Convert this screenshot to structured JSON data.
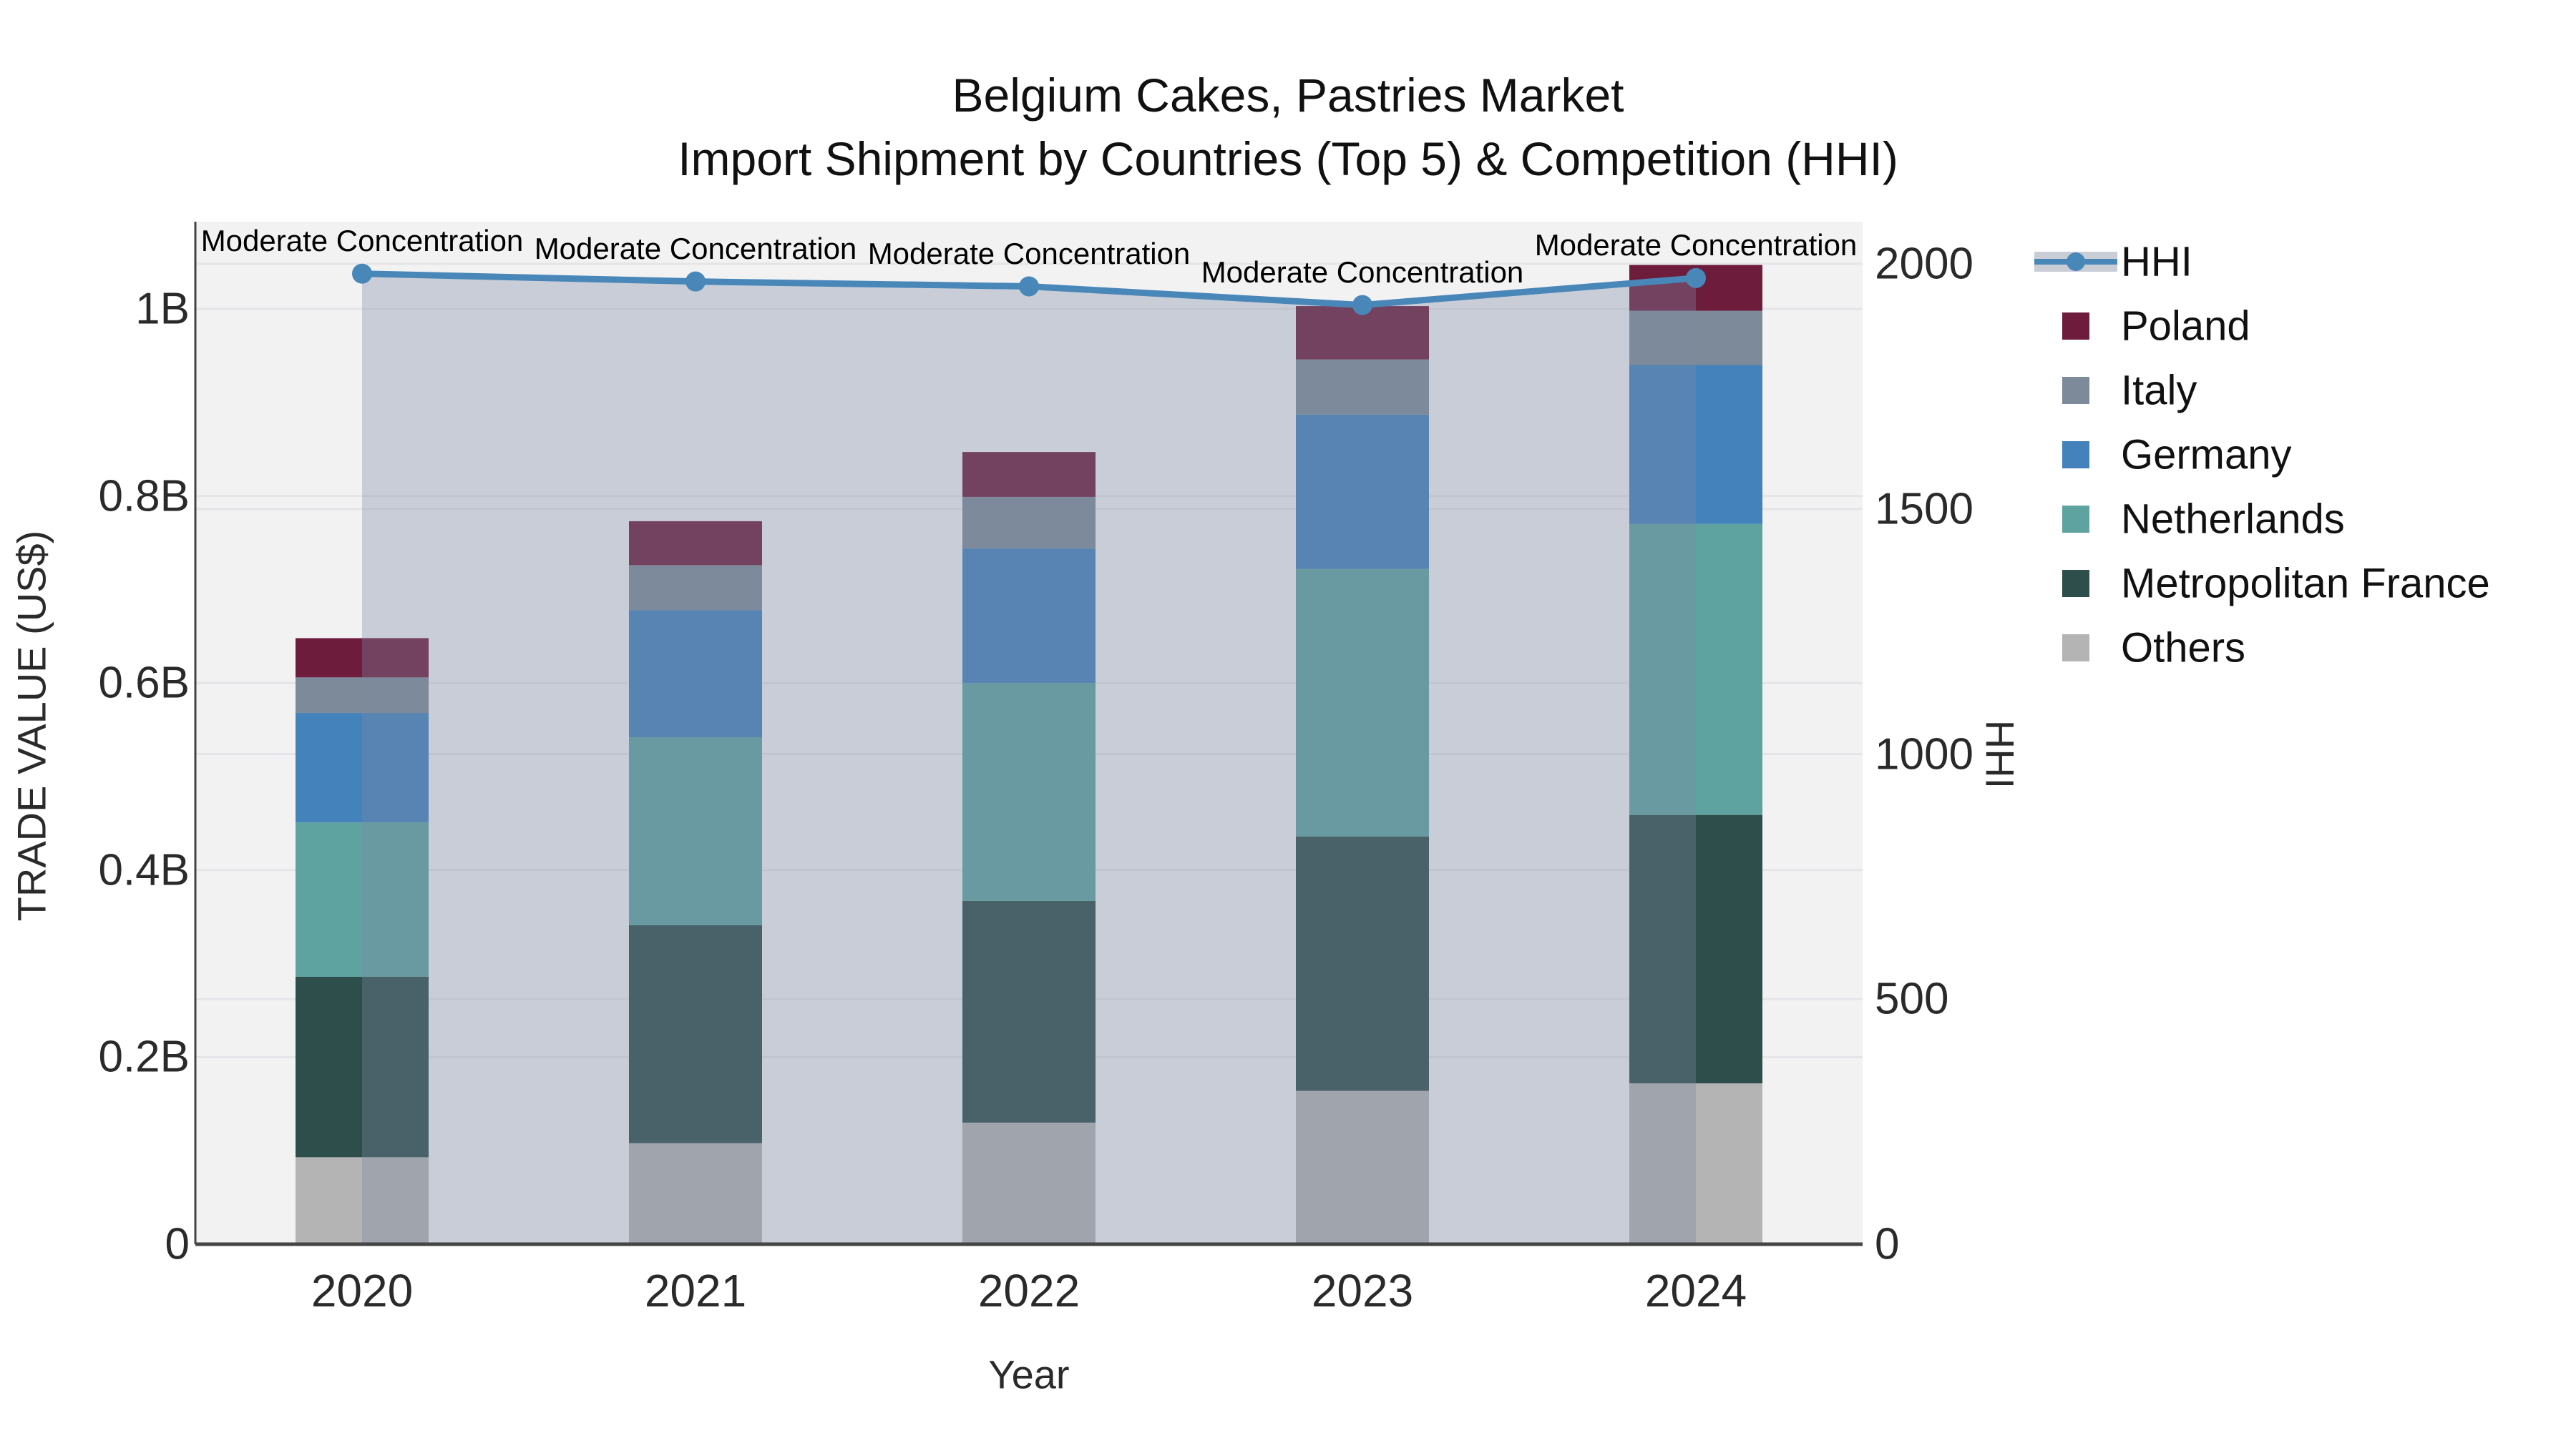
{
  "title": {
    "line1": "Belgium Cakes, Pastries Market",
    "line2": "Import Shipment by Countries (Top 5) & Competition (HHI)"
  },
  "axes": {
    "left": {
      "title": "TRADE VALUE (US$)",
      "ticks": [
        {
          "label": "0",
          "value": 0
        },
        {
          "label": "0.2B",
          "value": 0.2
        },
        {
          "label": "0.4B",
          "value": 0.4
        },
        {
          "label": "0.6B",
          "value": 0.6
        },
        {
          "label": "0.8B",
          "value": 0.8
        },
        {
          "label": "1B",
          "value": 1.0
        }
      ]
    },
    "right": {
      "title": "HHI",
      "ticks": [
        {
          "label": "0",
          "value": 0
        },
        {
          "label": "500",
          "value": 500
        },
        {
          "label": "1000",
          "value": 1000
        },
        {
          "label": "1500",
          "value": 1500
        },
        {
          "label": "2000",
          "value": 2000
        }
      ],
      "max": 2000
    },
    "x": {
      "title": "Year"
    }
  },
  "legend": {
    "items": [
      {
        "label": "HHI",
        "type": "line",
        "color": "#4987b9"
      },
      {
        "label": "Poland",
        "type": "swatch",
        "color": "#6e1c3c"
      },
      {
        "label": "Italy",
        "type": "swatch",
        "color": "#7d8a99"
      },
      {
        "label": "Germany",
        "type": "swatch",
        "color": "#4382ba"
      },
      {
        "label": "Netherlands",
        "type": "swatch",
        "color": "#5ea3a0"
      },
      {
        "label": "Metropolitan France",
        "type": "swatch",
        "color": "#2d4e4a"
      },
      {
        "label": "Others",
        "type": "swatch",
        "color": "#b3b4b3"
      }
    ]
  },
  "annotations": [
    {
      "text": "Moderate Concentration"
    },
    {
      "text": "Moderate Concentration"
    },
    {
      "text": "Moderate Concentration"
    },
    {
      "text": "Moderate Concentration"
    },
    {
      "text": "Moderate Concentration"
    }
  ],
  "chart_data": {
    "type": "stacked-bar+line",
    "title": "Belgium Cakes, Pastries Market — Import Shipment by Countries (Top 5) & Competition (HHI)",
    "categories": [
      "2020",
      "2021",
      "2022",
      "2023",
      "2024"
    ],
    "value_unit": "billions US$",
    "xlabel": "Year",
    "ylabel_left": "TRADE VALUE (US$)",
    "ylabel_right": "HHI",
    "ylim_left": [
      0,
      1.1
    ],
    "ylim_right": [
      0,
      2000
    ],
    "grid": true,
    "legend_position": "right",
    "series": [
      {
        "name": "Others",
        "color": "#b3b4b3",
        "values": [
          0.093,
          0.108,
          0.13,
          0.164,
          0.172
        ]
      },
      {
        "name": "Metropolitan France",
        "color": "#2d4e4a",
        "values": [
          0.193,
          0.233,
          0.237,
          0.272,
          0.287
        ]
      },
      {
        "name": "Netherlands",
        "color": "#5ea3a0",
        "values": [
          0.165,
          0.201,
          0.233,
          0.286,
          0.311
        ]
      },
      {
        "name": "Germany",
        "color": "#4382ba",
        "values": [
          0.117,
          0.136,
          0.144,
          0.165,
          0.17
        ]
      },
      {
        "name": "Italy",
        "color": "#7d8a99",
        "values": [
          0.038,
          0.048,
          0.055,
          0.059,
          0.058
        ]
      },
      {
        "name": "Poland",
        "color": "#6e1c3c",
        "values": [
          0.042,
          0.047,
          0.048,
          0.057,
          0.049
        ]
      }
    ],
    "bar_totals": [
      0.648,
      0.773,
      0.847,
      1.003,
      1.047
    ],
    "line": {
      "name": "HHI",
      "axis": "right",
      "color": "#4987b9",
      "fill_color": "rgba(127,138,162,0.35)",
      "values": [
        1980,
        1964,
        1954,
        1916,
        1971
      ]
    },
    "colors": {
      "plot_background": "#f2f2f3",
      "page_background": "#ffffff",
      "gridline": "#e5e5e9",
      "axis_line": "#444444",
      "text": "#2a2a2a"
    }
  }
}
